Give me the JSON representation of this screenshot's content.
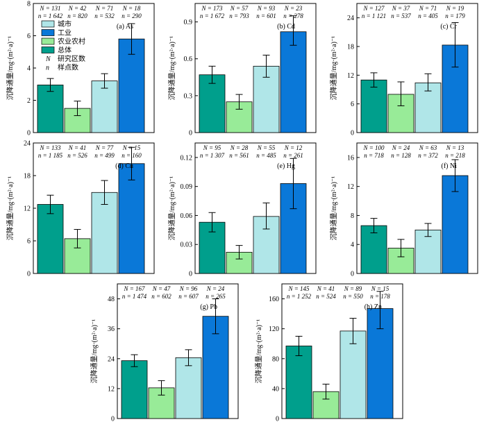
{
  "colors": {
    "总体": "#009f8c",
    "农业农村": "#98eb98",
    "城市": "#b0e6e8",
    "工业": "#0a78d8",
    "axis": "#000000"
  },
  "legend": {
    "items": [
      {
        "label": "城市",
        "color_key": "城市"
      },
      {
        "label": "工业",
        "color_key": "工业"
      },
      {
        "label": "农业农村",
        "color_key": "农业农村"
      },
      {
        "label": "总体",
        "color_key": "总体"
      }
    ],
    "N_symbol": "N",
    "N_desc": "研究区数",
    "n_symbol": "n",
    "n_desc": "样点数"
  },
  "chart_data": [
    {
      "type": "bar",
      "panel": "(a) As",
      "ylabel": "沉降通量/mg·(m²·a)⁻¹",
      "ylim": [
        0,
        8
      ],
      "yticks": [
        0,
        2,
        4,
        6,
        8
      ],
      "tick_labels": [
        "0",
        "2",
        "4",
        "6",
        "8"
      ],
      "categories": [
        "总体",
        "农业农村",
        "城市",
        "工业"
      ],
      "values": [
        2.95,
        1.5,
        3.2,
        5.8
      ],
      "err_low": [
        2.55,
        1.05,
        2.75,
        4.85
      ],
      "err_high": [
        3.35,
        1.95,
        3.65,
        6.75
      ],
      "N_labels": [
        "N = 131",
        "N = 42",
        "N = 71",
        "N = 18"
      ],
      "n_labels": [
        "n = 1 642",
        "n = 820",
        "n = 532",
        "n = 290"
      ]
    },
    {
      "type": "bar",
      "panel": "(b) Cd",
      "ylabel": "沉降通量/mg·(m²·a)⁻¹",
      "ylim": [
        0,
        1.05
      ],
      "yticks": [
        0,
        0.3,
        0.6,
        0.9
      ],
      "tick_labels": [
        "0",
        "0.3",
        "0.6",
        "0.9"
      ],
      "categories": [
        "总体",
        "农业农村",
        "城市",
        "工业"
      ],
      "values": [
        0.47,
        0.25,
        0.54,
        0.82
      ],
      "err_low": [
        0.4,
        0.19,
        0.45,
        0.71
      ],
      "err_high": [
        0.54,
        0.31,
        0.63,
        0.95
      ],
      "N_labels": [
        "N = 173",
        "N = 57",
        "N = 93",
        "N = 23"
      ],
      "n_labels": [
        "n = 1 672",
        "n = 793",
        "n = 601",
        "n = 278"
      ]
    },
    {
      "type": "bar",
      "panel": "(c) Cr",
      "ylabel": "沉降通量/mg·(m²·a)⁻¹",
      "ylim": [
        0,
        27
      ],
      "yticks": [
        0,
        6,
        12,
        18,
        24
      ],
      "tick_labels": [
        "0",
        "6",
        "12",
        "18",
        "24"
      ],
      "categories": [
        "总体",
        "农业农村",
        "城市",
        "工业"
      ],
      "values": [
        11.0,
        8.0,
        10.4,
        18.3
      ],
      "err_low": [
        9.5,
        5.6,
        8.7,
        13.7
      ],
      "err_high": [
        12.5,
        10.6,
        12.3,
        23.0
      ],
      "N_labels": [
        "N = 127",
        "N = 37",
        "N = 71",
        "N = 19"
      ],
      "n_labels": [
        "n = 1 121",
        "n = 537",
        "n = 405",
        "n = 179"
      ]
    },
    {
      "type": "bar",
      "panel": "(d) Cu",
      "ylabel": "沉降通量/mg·(m²·a)⁻¹",
      "ylim": [
        0,
        24
      ],
      "yticks": [
        0,
        6,
        12,
        18,
        24
      ],
      "tick_labels": [
        "0",
        "6",
        "12",
        "18",
        "24"
      ],
      "categories": [
        "总体",
        "农业农村",
        "城市",
        "工业"
      ],
      "values": [
        12.7,
        6.4,
        14.9,
        20.2
      ],
      "err_low": [
        11.0,
        4.7,
        12.7,
        17.2
      ],
      "err_high": [
        14.4,
        8.1,
        17.1,
        23.2
      ],
      "N_labels": [
        "N = 133",
        "N = 41",
        "N = 77",
        "N = 15"
      ],
      "n_labels": [
        "n = 1 185",
        "n = 526",
        "n = 499",
        "n = 160"
      ]
    },
    {
      "type": "bar",
      "panel": "(e) Hg",
      "ylabel": "沉降通量/mg·(m²·a)⁻¹",
      "ylim": [
        0,
        0.135
      ],
      "yticks": [
        0,
        0.03,
        0.06,
        0.09,
        0.12
      ],
      "tick_labels": [
        "0",
        "0.03",
        "0.06",
        "0.09",
        "0.12"
      ],
      "categories": [
        "总体",
        "农业农村",
        "城市",
        "工业"
      ],
      "values": [
        0.053,
        0.022,
        0.059,
        0.093
      ],
      "err_low": [
        0.043,
        0.015,
        0.046,
        0.067
      ],
      "err_high": [
        0.063,
        0.029,
        0.073,
        0.119
      ],
      "N_labels": [
        "N = 95",
        "N = 28",
        "N = 55",
        "N = 12"
      ],
      "n_labels": [
        "n = 1 307",
        "n = 561",
        "n = 485",
        "n = 261"
      ]
    },
    {
      "type": "bar",
      "panel": "(f) Ni",
      "ylabel": "沉降通量/mg·(m²·a)⁻¹",
      "ylim": [
        0,
        18
      ],
      "yticks": [
        0,
        4,
        8,
        12,
        16
      ],
      "tick_labels": [
        "0",
        "4",
        "8",
        "12",
        "16"
      ],
      "categories": [
        "总体",
        "农业农村",
        "城市",
        "工业"
      ],
      "values": [
        6.6,
        3.5,
        6.0,
        13.5
      ],
      "err_low": [
        5.6,
        2.3,
        5.1,
        11.3
      ],
      "err_high": [
        7.6,
        4.7,
        6.9,
        15.7
      ],
      "N_labels": [
        "N = 100",
        "N = 24",
        "N = 63",
        "N = 13"
      ],
      "n_labels": [
        "n = 718",
        "n = 128",
        "n = 372",
        "n = 218"
      ]
    },
    {
      "type": "bar",
      "panel": "(g) Pb",
      "ylabel": "沉降通量/mg·(m²·a)⁻¹",
      "ylim": [
        0,
        54
      ],
      "yticks": [
        0,
        12,
        24,
        36,
        48
      ],
      "tick_labels": [
        "0",
        "12",
        "24",
        "36",
        "48"
      ],
      "categories": [
        "总体",
        "农业农村",
        "城市",
        "工业"
      ],
      "values": [
        23.2,
        12.3,
        24.4,
        41.0
      ],
      "err_low": [
        20.8,
        9.4,
        21.2,
        34.0
      ],
      "err_high": [
        25.6,
        15.2,
        27.6,
        48.0
      ],
      "N_labels": [
        "N = 167",
        "N = 47",
        "N = 96",
        "N = 24"
      ],
      "n_labels": [
        "n = 1 474",
        "n = 602",
        "n = 607",
        "n = 265"
      ]
    },
    {
      "type": "bar",
      "panel": "(h) Zn",
      "ylabel": "沉降通量/mg·(m²·a)⁻¹",
      "ylim": [
        0,
        180
      ],
      "yticks": [
        0,
        40,
        80,
        120,
        160
      ],
      "tick_labels": [
        "0",
        "40",
        "80",
        "120",
        "160"
      ],
      "categories": [
        "总体",
        "农业农村",
        "城市",
        "工业"
      ],
      "values": [
        97,
        36,
        117,
        147
      ],
      "err_low": [
        84,
        26,
        100,
        120
      ],
      "err_high": [
        110,
        46,
        134,
        170
      ],
      "N_labels": [
        "N = 145",
        "N = 41",
        "N = 89",
        "N = 15"
      ],
      "n_labels": [
        "n = 1 252",
        "n = 524",
        "n = 550",
        "n = 178"
      ]
    }
  ]
}
